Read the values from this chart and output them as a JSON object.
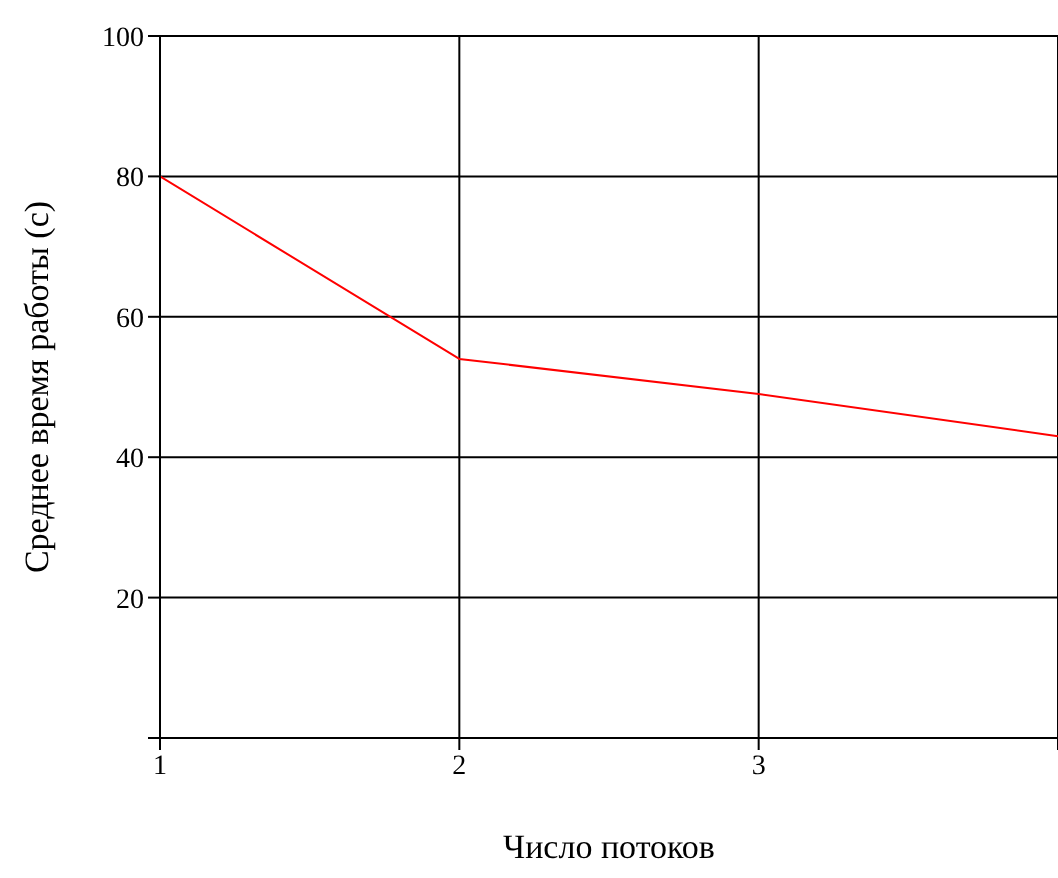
{
  "chart_data": {
    "type": "line",
    "xlabel": "Число потоков",
    "ylabel": "Среднее время работы (с)",
    "x": [
      1,
      2,
      3,
      4
    ],
    "series": [
      {
        "color": "#ff0000",
        "values": [
          80,
          54,
          49,
          43
        ]
      }
    ],
    "xlim": [
      1,
      4
    ],
    "xticks": [
      1,
      2,
      3,
      {
        "value": 4,
        "label": null
      }
    ],
    "ylim": [
      0,
      100
    ],
    "yticks": [
      {
        "value": 0,
        "label": null
      },
      20,
      40,
      60,
      80,
      100
    ],
    "grid": true,
    "marker": "none",
    "line_style": "solid",
    "legend": false
  }
}
